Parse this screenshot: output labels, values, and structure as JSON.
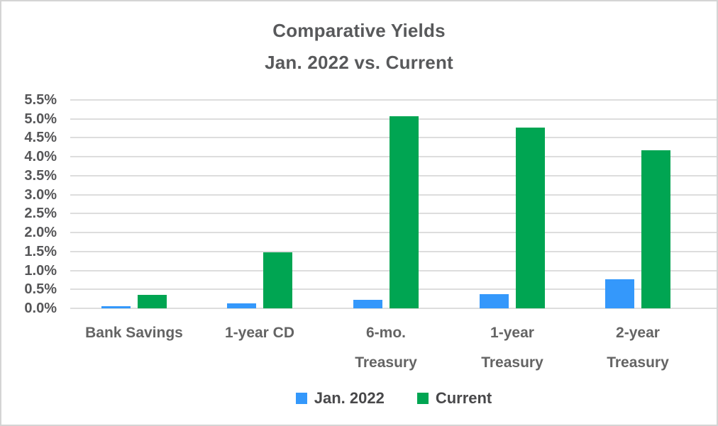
{
  "chart_data": {
    "type": "bar",
    "title": "Comparative Yields",
    "subtitle": "Jan. 2022 vs. Current",
    "categories": [
      "Bank Savings",
      "1-year CD",
      "6-mo.\nTreasury",
      "1-year\nTreasury",
      "2-year\nTreasury"
    ],
    "series": [
      {
        "name": "Jan. 2022",
        "color": "#3498fb",
        "values": [
          0.06,
          0.14,
          0.22,
          0.38,
          0.77
        ]
      },
      {
        "name": "Current",
        "color": "#00a552",
        "values": [
          0.35,
          1.47,
          5.07,
          4.77,
          4.17
        ]
      }
    ],
    "ylim": [
      0,
      5.5
    ],
    "ytick_step": 0.5,
    "ytick_labels": [
      "0.0%",
      "0.5%",
      "1.0%",
      "1.5%",
      "2.0%",
      "2.5%",
      "3.0%",
      "3.5%",
      "4.0%",
      "4.5%",
      "5.0%",
      "5.5%"
    ],
    "grid": true,
    "legend_position": "bottom-center",
    "palette": {
      "grid": "#dddddd",
      "title_text": "#58595b",
      "axis_tick_text": "#565658",
      "category_text": "#646464",
      "legend_text": "#48484a",
      "background": "#ffffff",
      "border": "#d4d4d4"
    }
  }
}
